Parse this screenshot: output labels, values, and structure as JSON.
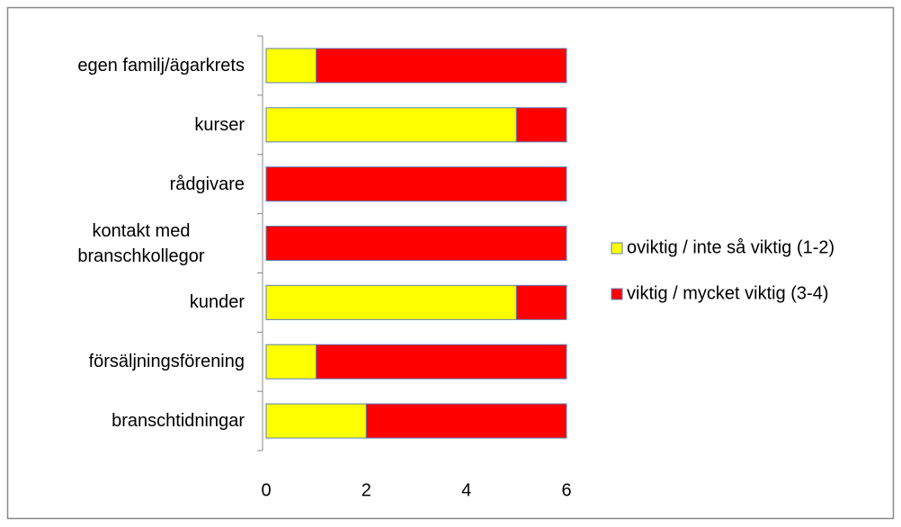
{
  "chart_data": {
    "type": "bar",
    "orientation": "horizontal",
    "stacked": true,
    "categories": [
      "egen familj/ägarkrets",
      "kurser",
      "rådgivare",
      "kontakt med branschkollegor",
      "kunder",
      "försäljningsförening",
      "branschtidningar"
    ],
    "series": [
      {
        "name": "oviktig / inte så viktig (1-2)",
        "color": "#ffff00",
        "values": [
          1,
          5,
          0,
          0,
          5,
          1,
          2
        ]
      },
      {
        "name": "viktig / mycket viktig (3-4)",
        "color": "#ff0000",
        "values": [
          5,
          1,
          6,
          6,
          1,
          5,
          4
        ]
      }
    ],
    "xlim": [
      0,
      6
    ],
    "xticks": [
      0,
      2,
      4,
      6
    ],
    "grid": false,
    "legend": "right"
  }
}
